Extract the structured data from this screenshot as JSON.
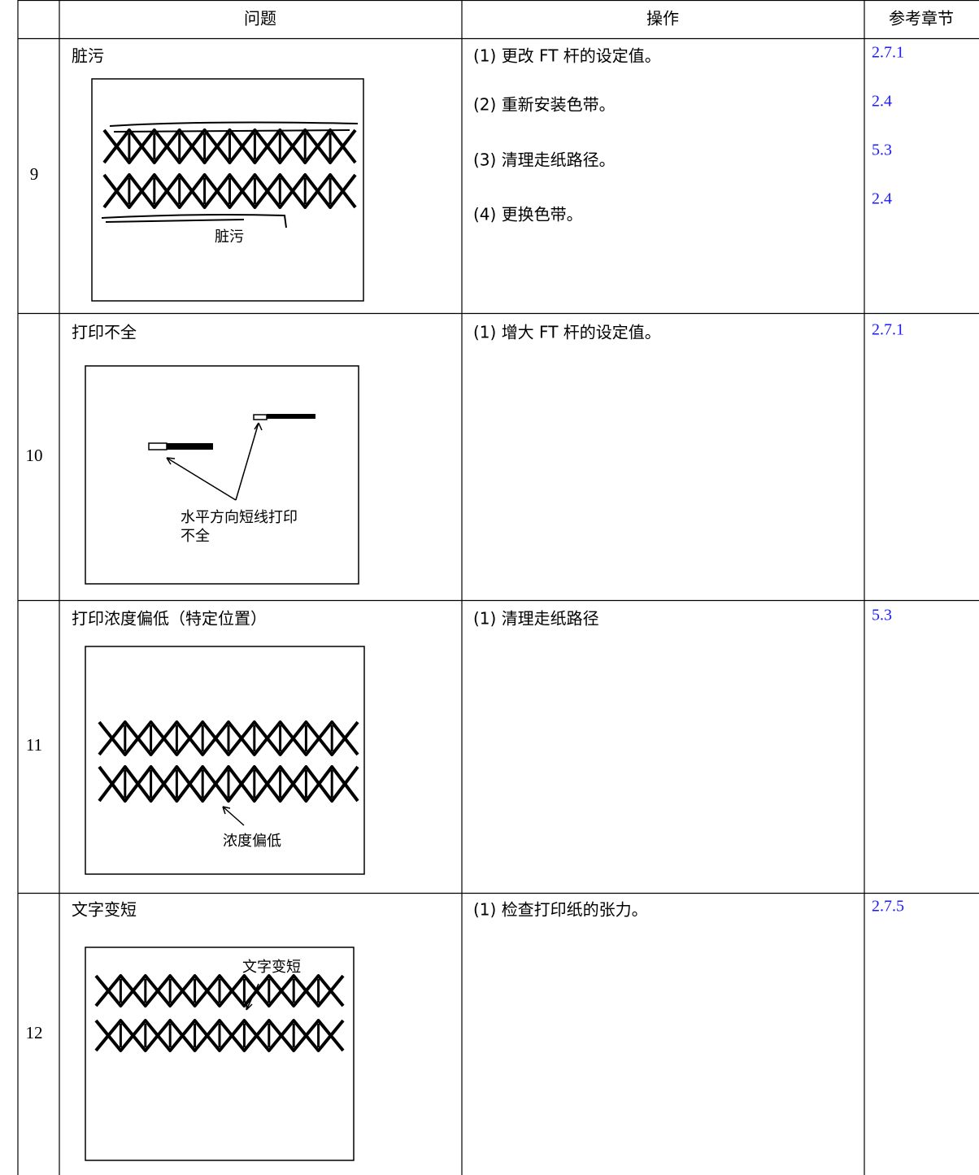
{
  "header": {
    "columns": [
      "问题",
      "操作",
      "参考章节"
    ]
  },
  "rows": [
    {
      "number": 9,
      "problem": "脏污",
      "caption": [
        "脏污"
      ],
      "actions": [
        "(1) 更改 FT 杆的设定值。",
        "(2) 重新安装色带。",
        "(3) 清理走纸路径。",
        "(4) 更换色带。"
      ],
      "refs": [
        "2.7.1",
        "2.4",
        "5.3",
        "2.4"
      ]
    },
    {
      "number": 10,
      "problem": "打印不全",
      "caption": [
        "水平方向短线打印",
        "不全"
      ],
      "actions": [
        "(1) 增大 FT 杆的设定值。"
      ],
      "refs": [
        "2.7.1"
      ]
    },
    {
      "number": 11,
      "problem": "打印浓度偏低（特定位置）",
      "caption": [
        "浓度偏低"
      ],
      "actions": [
        "(1) 清理走纸路径"
      ],
      "refs": [
        "5.3"
      ]
    },
    {
      "number": 12,
      "problem": "文字变短",
      "caption": [
        "文字变短"
      ],
      "actions": [
        "(1) 检查打印纸的张力。"
      ],
      "refs": [
        "2.7.5"
      ]
    }
  ]
}
